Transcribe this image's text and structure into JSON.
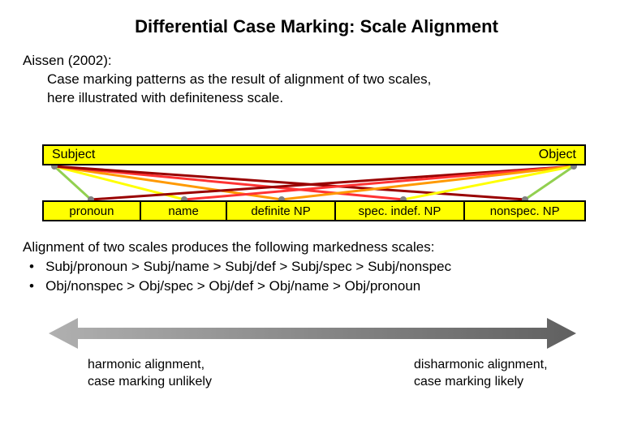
{
  "title": "Differential Case Marking: Scale Alignment",
  "intro": {
    "l1": "Aissen (2002):",
    "l2": "Case marking patterns as the result of alignment of two scales,",
    "l3": "here illustrated with definiteness scale."
  },
  "topBar": {
    "left": "Subject",
    "right": "Object",
    "bg": "#ffff00",
    "border": "#000000"
  },
  "bottomBar": {
    "cells": [
      {
        "label": "pronoun",
        "widthPct": 18
      },
      {
        "label": "name",
        "widthPct": 16
      },
      {
        "label": "definite NP",
        "widthPct": 20
      },
      {
        "label": "spec. indef. NP",
        "widthPct": 24
      },
      {
        "label": "nonspec. NP",
        "widthPct": 22
      }
    ],
    "bg": "#ffff00",
    "border": "#000000"
  },
  "diagram": {
    "widthPx": 670,
    "heightPx": 43,
    "topY": 1,
    "botY": 42,
    "topPoints": [
      15,
      655
    ],
    "botPoints": [
      60,
      175,
      295,
      445,
      595
    ],
    "lines": [
      {
        "from": "top0",
        "to": "bot0",
        "color": "#92d050",
        "w": 3
      },
      {
        "from": "top0",
        "to": "bot1",
        "color": "#ffff00",
        "w": 3
      },
      {
        "from": "top0",
        "to": "bot2",
        "color": "#ff9900",
        "w": 3
      },
      {
        "from": "top0",
        "to": "bot3",
        "color": "#ff3333",
        "w": 3
      },
      {
        "from": "top0",
        "to": "bot4",
        "color": "#990000",
        "w": 3
      },
      {
        "from": "top1",
        "to": "bot0",
        "color": "#990000",
        "w": 3
      },
      {
        "from": "top1",
        "to": "bot1",
        "color": "#ff3333",
        "w": 3
      },
      {
        "from": "top1",
        "to": "bot2",
        "color": "#ff9900",
        "w": 3
      },
      {
        "from": "top1",
        "to": "bot3",
        "color": "#ffff00",
        "w": 3
      },
      {
        "from": "top1",
        "to": "bot4",
        "color": "#92d050",
        "w": 3
      }
    ],
    "dotRadius": 4,
    "dotColor": "#808080"
  },
  "markedness": {
    "intro": "Alignment of two scales produces the following markedness scales:",
    "b1": "Subj/pronoun > Subj/name > Subj/def > Subj/spec > Subj/nonspec",
    "b2": "Obj/nonspec > Obj/spec > Obj/def > Obj/name > Obj/pronoun"
  },
  "arrow": {
    "gradLeft": "#b0b0b0",
    "gradRight": "#606060",
    "stroke": "none"
  },
  "bottomLabels": {
    "left1": "harmonic alignment,",
    "left2": "case marking unlikely",
    "right1": "disharmonic alignment,",
    "right2": "case marking likely"
  },
  "fonts": {
    "title": 22,
    "body": 17,
    "cell": 15
  },
  "colors": {
    "pageBg": "#ffffff",
    "text": "#000000"
  }
}
